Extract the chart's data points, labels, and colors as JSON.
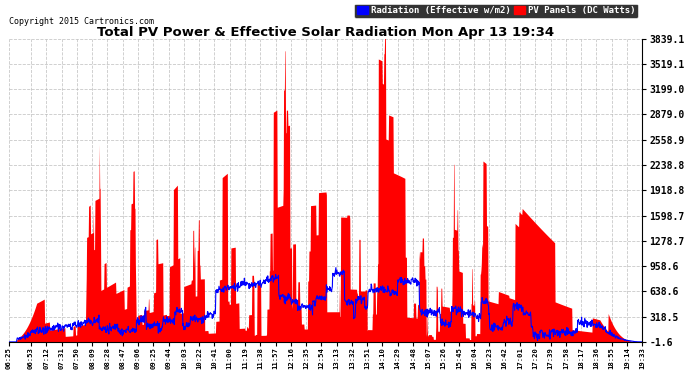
{
  "title": "Total PV Power & Effective Solar Radiation Mon Apr 13 19:34",
  "copyright": "Copyright 2015 Cartronics.com",
  "legend_radiation": "Radiation (Effective w/m2)",
  "legend_pv": "PV Panels (DC Watts)",
  "ylabel_right_ticks": [
    3839.1,
    3519.1,
    3199.0,
    2879.0,
    2558.9,
    2238.8,
    1918.8,
    1598.7,
    1278.7,
    958.6,
    638.6,
    318.5,
    -1.6
  ],
  "ylim": [
    -1.6,
    3839.1
  ],
  "background_color": "#ffffff",
  "plot_bg_color": "#ffffff",
  "grid_color": "#bbbbbb",
  "radiation_color": "#0000ff",
  "pv_color": "#ff0000",
  "title_color": "#000000",
  "x_labels": [
    "06:25",
    "06:53",
    "07:12",
    "07:31",
    "07:50",
    "08:09",
    "08:28",
    "08:47",
    "09:06",
    "09:25",
    "09:44",
    "10:03",
    "10:22",
    "10:41",
    "11:00",
    "11:19",
    "11:38",
    "11:57",
    "12:16",
    "12:35",
    "12:54",
    "13:13",
    "13:32",
    "13:51",
    "14:10",
    "14:29",
    "14:48",
    "15:07",
    "15:26",
    "15:45",
    "16:04",
    "16:23",
    "16:42",
    "17:01",
    "17:20",
    "17:39",
    "17:58",
    "18:17",
    "18:36",
    "18:55",
    "19:14",
    "19:33"
  ],
  "figsize": [
    6.9,
    3.75
  ],
  "dpi": 100
}
